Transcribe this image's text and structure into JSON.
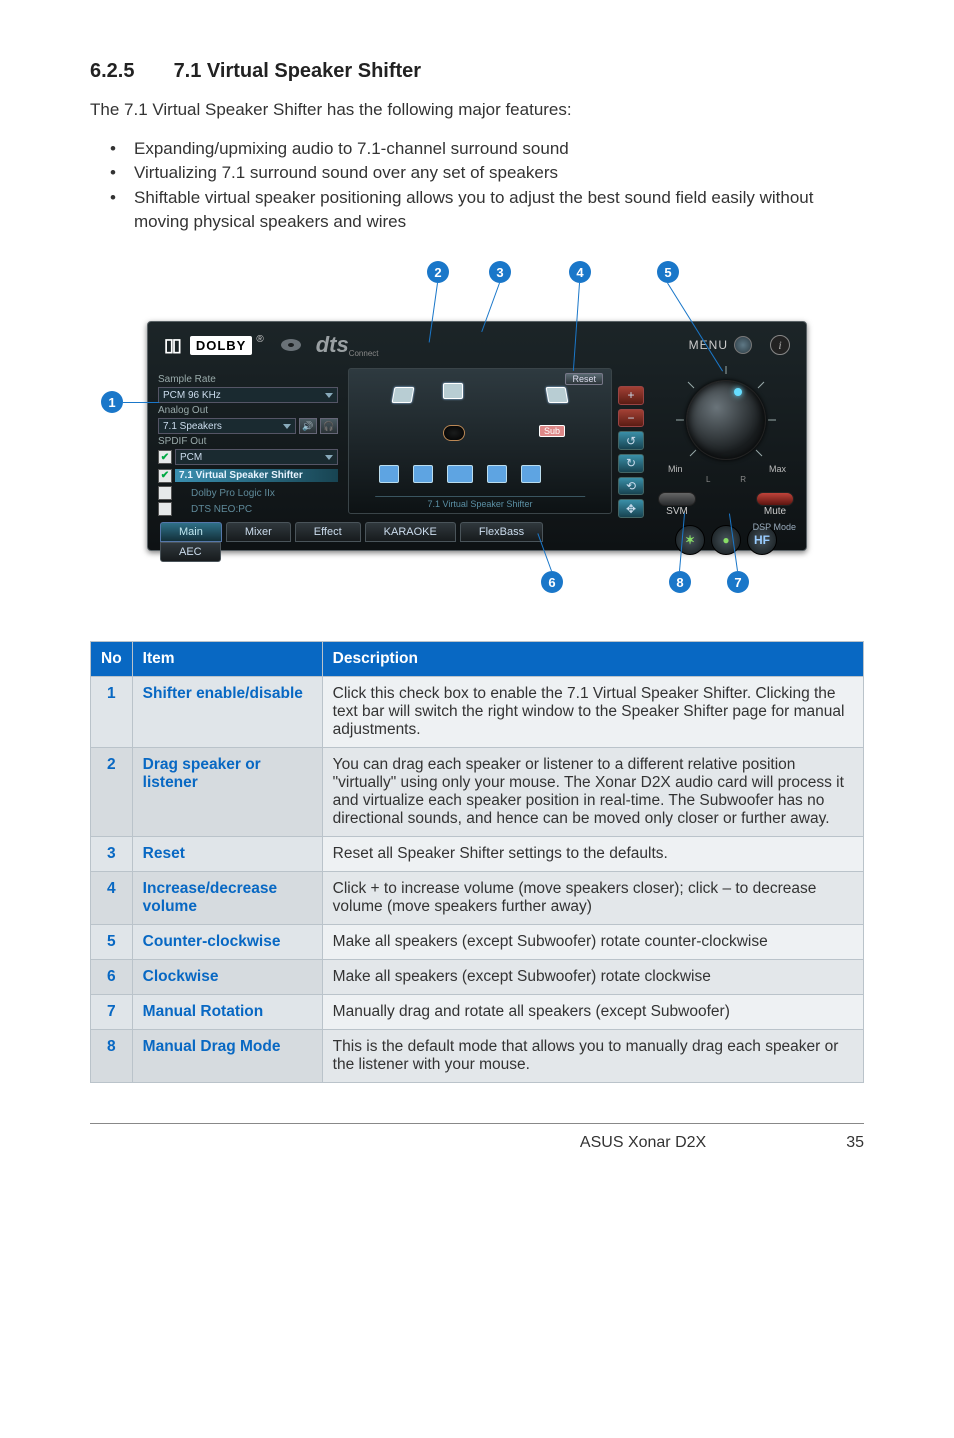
{
  "heading": {
    "number": "6.2.5",
    "title": "7.1 Virtual Speaker Shifter"
  },
  "intro": "The 7.1 Virtual Speaker Shifter has the following major features:",
  "bullets": [
    "Expanding/upmixing audio to 7.1-channel surround sound",
    "Virtualizing 7.1 surround sound over any set of speakers",
    "Shiftable virtual speaker positioning allows you to adjust the best sound field easily without moving physical speakers and wires"
  ],
  "callouts": [
    "1",
    "2",
    "3",
    "4",
    "5",
    "6",
    "7",
    "8"
  ],
  "panel": {
    "dolby_prefix": "▯▯",
    "dolby": "DOLBY",
    "dolby_reg": "®",
    "dts": "dts",
    "dts_tag": "Connect",
    "menu": "MENU",
    "info": "i",
    "left": {
      "sample_rate_label": "Sample Rate",
      "sample_rate_value": "PCM 96 KHz",
      "analog_out_label": "Analog Out",
      "analog_out_value": "7.1 Speakers",
      "spdif_label": "SPDIF Out",
      "spdif_value": "PCM",
      "shifter_row": "7.1 Virtual Speaker Shifter",
      "dolby_pl": "Dolby Pro Logic IIx",
      "dts_neo": "DTS NEO:PC"
    },
    "center": {
      "reset": "Reset",
      "sub": "Sub",
      "label": "7.1 Virtual Speaker Shifter"
    },
    "right": {
      "min": "Min",
      "max": "Max",
      "l": "L",
      "r": "R",
      "svm": "SVM",
      "mute": "Mute",
      "dsp": "DSP Mode",
      "hf": "HF"
    },
    "tabs": [
      "Main",
      "Mixer",
      "Effect",
      "KARAOKE",
      "FlexBass"
    ],
    "tab_active_index": 0,
    "tab2": "AEC"
  },
  "table": {
    "headers": {
      "no": "No",
      "item": "Item",
      "desc": "Description"
    },
    "rows": [
      {
        "no": "1",
        "item": "Shifter enable/disable",
        "desc": "Click this check box to enable the 7.1 Virtual Speaker Shifter. Clicking the text bar will switch the right window to the Speaker Shifter page for manual adjustments."
      },
      {
        "no": "2",
        "item": "Drag speaker or listener",
        "desc": "You can drag each speaker or listener to a different relative position \"virtually\" using only your mouse. The Xonar D2X audio card will process it and virtualize each speaker position in real-time. The Subwoofer has no directional sounds, and hence can be moved only closer or further away."
      },
      {
        "no": "3",
        "item": "Reset",
        "desc": "Reset all Speaker Shifter settings to the defaults."
      },
      {
        "no": "4",
        "item": "Increase/decrease volume",
        "desc": "Click + to increase volume (move speakers closer); click – to decrease volume (move speakers further away)"
      },
      {
        "no": "5",
        "item": "Counter-clockwise",
        "desc": "Make all speakers (except Subwoofer) rotate counter-clockwise"
      },
      {
        "no": "6",
        "item": "Clockwise",
        "desc": "Make all speakers (except Subwoofer) rotate clockwise"
      },
      {
        "no": "7",
        "item": "Manual Rotation",
        "desc": "Manually drag and rotate all speakers (except Subwoofer)"
      },
      {
        "no": "8",
        "item": "Manual Drag Mode",
        "desc": "This is the default mode that allows you to manually drag each speaker or the listener with your mouse."
      }
    ]
  },
  "footer": {
    "product": "ASUS Xonar D2X",
    "page": "35"
  },
  "colors": {
    "callout_bg": "#1a77c9",
    "table_header_bg": "#0868c3",
    "table_link": "#0868c3"
  }
}
